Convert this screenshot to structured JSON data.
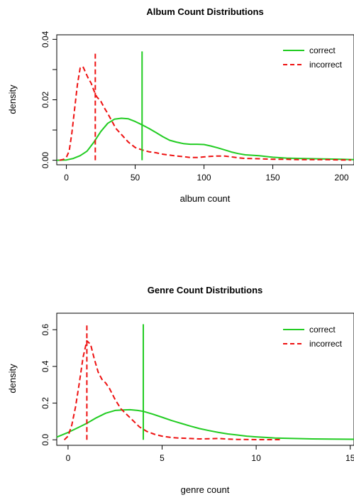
{
  "chart_data": [
    {
      "type": "line",
      "title": "Album Count Distributions",
      "xlabel": "album count",
      "ylabel": "density",
      "xlim": [
        -7,
        209
      ],
      "ylim": [
        -0.0015,
        0.0415
      ],
      "xticks": [
        0,
        50,
        100,
        150,
        200
      ],
      "xtick_labels": [
        "0",
        "50",
        "100",
        "150",
        "200"
      ],
      "yticks": [
        0.0,
        0.01,
        0.02,
        0.03,
        0.04
      ],
      "ytick_labels": [
        "0.00",
        "",
        "0.02",
        "",
        "0.04"
      ],
      "legend": {
        "position": "top-right",
        "entries": [
          "correct",
          "incorrect"
        ]
      },
      "series": [
        {
          "name": "correct",
          "color": "#22cc22",
          "dash": "solid",
          "x": [
            -7,
            0,
            5,
            10,
            15,
            20,
            25,
            30,
            35,
            40,
            45,
            50,
            55,
            60,
            65,
            70,
            75,
            80,
            85,
            90,
            95,
            100,
            105,
            110,
            115,
            120,
            125,
            130,
            140,
            150,
            160,
            170,
            180,
            190,
            200,
            209
          ],
          "y": [
            0.0,
            0.0001,
            0.0006,
            0.0015,
            0.003,
            0.006,
            0.0095,
            0.0122,
            0.0136,
            0.0139,
            0.0137,
            0.0128,
            0.0117,
            0.0105,
            0.0092,
            0.0078,
            0.0066,
            0.006,
            0.0055,
            0.0053,
            0.0053,
            0.0052,
            0.0047,
            0.0041,
            0.0034,
            0.0027,
            0.0022,
            0.0018,
            0.0015,
            0.001,
            0.0007,
            0.0006,
            0.0005,
            0.0004,
            0.0003,
            0.0002
          ]
        },
        {
          "name": "incorrect",
          "color": "#ee1111",
          "dash": "dashed",
          "x": [
            -5,
            -2,
            0,
            2,
            4,
            6,
            8,
            10,
            12,
            14,
            16,
            18,
            20,
            22,
            25,
            28,
            30,
            33,
            36,
            40,
            45,
            50,
            55,
            60,
            65,
            70,
            75,
            80,
            85,
            90,
            95,
            100,
            105,
            110,
            115,
            120,
            125,
            130,
            140,
            150,
            160,
            170,
            180,
            190,
            200,
            207
          ],
          "y": [
            0.0,
            0.0003,
            0.001,
            0.003,
            0.009,
            0.017,
            0.025,
            0.0305,
            0.031,
            0.029,
            0.027,
            0.0255,
            0.023,
            0.021,
            0.0195,
            0.017,
            0.0155,
            0.013,
            0.0105,
            0.0085,
            0.006,
            0.0042,
            0.0034,
            0.0028,
            0.0025,
            0.002,
            0.0017,
            0.0014,
            0.0012,
            0.0009,
            0.0009,
            0.0011,
            0.0013,
            0.0014,
            0.0014,
            0.0011,
            0.0008,
            0.0006,
            0.0005,
            0.0003,
            0.0003,
            0.0002,
            0.0002,
            0.0002,
            0.0001,
            0.0001
          ]
        }
      ],
      "vlines": [
        {
          "series": "incorrect",
          "x": 21,
          "y": 0.036
        },
        {
          "series": "correct",
          "x": 55,
          "y": 0.036
        }
      ]
    },
    {
      "type": "line",
      "title": "Genre Count Distributions",
      "xlabel": "genre count",
      "ylabel": "density",
      "xlim": [
        -0.6,
        15.2
      ],
      "ylim": [
        -0.03,
        0.69
      ],
      "xticks": [
        0,
        5,
        10,
        15
      ],
      "xtick_labels": [
        "0",
        "5",
        "10",
        "15"
      ],
      "yticks": [
        0.0,
        0.2,
        0.4,
        0.6
      ],
      "ytick_labels": [
        "0.0",
        "0.2",
        "0.4",
        "0.6"
      ],
      "legend": {
        "position": "top-right",
        "entries": [
          "correct",
          "incorrect"
        ]
      },
      "series": [
        {
          "name": "correct",
          "color": "#22cc22",
          "dash": "solid",
          "x": [
            -0.6,
            0,
            0.5,
            1,
            1.5,
            2,
            2.5,
            3,
            3.3,
            3.7,
            4,
            4.5,
            5,
            5.5,
            6,
            6.5,
            7,
            7.5,
            8,
            8.5,
            9,
            9.5,
            10,
            10.5,
            11,
            12,
            13,
            14,
            15.2
          ],
          "y": [
            0.015,
            0.04,
            0.065,
            0.09,
            0.12,
            0.145,
            0.16,
            0.163,
            0.164,
            0.16,
            0.155,
            0.14,
            0.123,
            0.105,
            0.09,
            0.075,
            0.061,
            0.05,
            0.04,
            0.032,
            0.026,
            0.02,
            0.016,
            0.013,
            0.01,
            0.007,
            0.005,
            0.004,
            0.003
          ]
        },
        {
          "name": "incorrect",
          "color": "#ee1111",
          "dash": "dashed",
          "x": [
            -0.2,
            0,
            0.2,
            0.4,
            0.6,
            0.8,
            1.0,
            1.2,
            1.4,
            1.6,
            1.8,
            2.0,
            2.2,
            2.5,
            2.8,
            3.1,
            3.4,
            3.8,
            4.2,
            4.6,
            5,
            5.5,
            6,
            6.5,
            7,
            7.5,
            8,
            8.5,
            9,
            10,
            11,
            11.3
          ],
          "y": [
            0.0,
            0.02,
            0.08,
            0.18,
            0.31,
            0.45,
            0.54,
            0.52,
            0.44,
            0.37,
            0.33,
            0.31,
            0.28,
            0.22,
            0.17,
            0.14,
            0.11,
            0.07,
            0.045,
            0.03,
            0.02,
            0.012,
            0.009,
            0.007,
            0.005,
            0.006,
            0.007,
            0.004,
            0.002,
            0.001,
            0.001,
            0.001
          ]
        }
      ],
      "vlines": [
        {
          "series": "incorrect",
          "x": 1,
          "y": 0.63
        },
        {
          "series": "correct",
          "x": 4,
          "y": 0.63
        }
      ]
    }
  ]
}
